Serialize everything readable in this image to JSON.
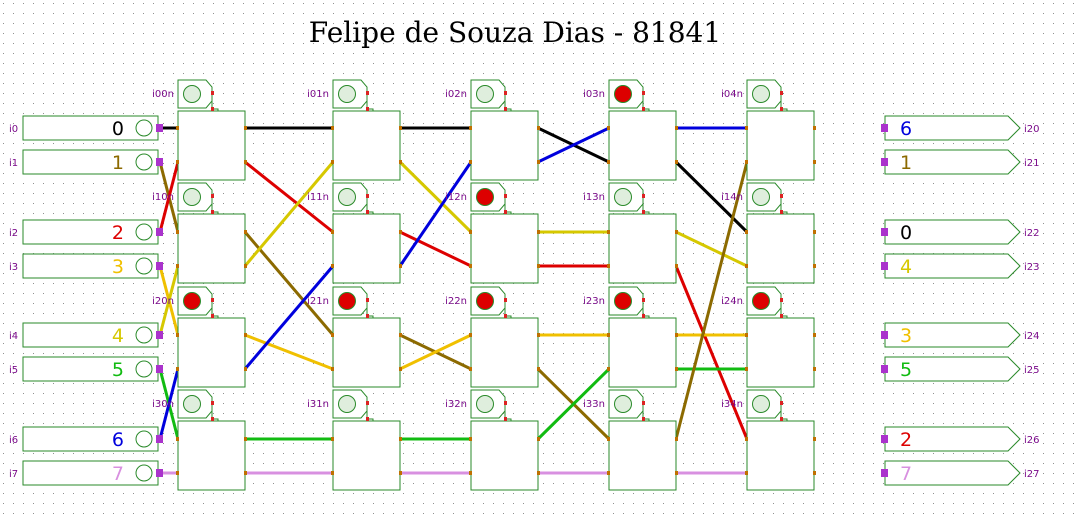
{
  "title": "Felipe de Souza Dias - 81841",
  "colors": {
    "0": "#000000",
    "1": "#8c6a00",
    "2": "#dd0000",
    "3": "#f0c000",
    "4": "#d6c800",
    "5": "#11bb11",
    "6": "#0000dd",
    "7": "#d890e0"
  },
  "inputs": [
    {
      "label": "i0",
      "value": "0",
      "color": "#000000"
    },
    {
      "label": "i1",
      "value": "1",
      "color": "#8c6a00"
    },
    {
      "label": "i2",
      "value": "2",
      "color": "#dd0000"
    },
    {
      "label": "i3",
      "value": "3",
      "color": "#f0c000"
    },
    {
      "label": "i4",
      "value": "4",
      "color": "#d6c800"
    },
    {
      "label": "i5",
      "value": "5",
      "color": "#11bb11"
    },
    {
      "label": "i6",
      "value": "6",
      "color": "#0000dd"
    },
    {
      "label": "i7",
      "value": "7",
      "color": "#d890e0"
    }
  ],
  "outputs": [
    {
      "label": "i20",
      "value": "6",
      "color": "#0000dd"
    },
    {
      "label": "i21",
      "value": "1",
      "color": "#8c6a00"
    },
    {
      "label": "i22",
      "value": "0",
      "color": "#000000"
    },
    {
      "label": "i23",
      "value": "4",
      "color": "#d6c800"
    },
    {
      "label": "i24",
      "value": "3",
      "color": "#f0c000"
    },
    {
      "label": "i25",
      "value": "5",
      "color": "#11bb11"
    },
    {
      "label": "i26",
      "value": "2",
      "color": "#dd0000"
    },
    {
      "label": "i27",
      "value": "7",
      "color": "#d890e0"
    }
  ],
  "switches": [
    {
      "label": "i00n",
      "on": false
    },
    {
      "label": "i01n",
      "on": false
    },
    {
      "label": "i02n",
      "on": false
    },
    {
      "label": "i03n",
      "on": true
    },
    {
      "label": "i04n",
      "on": false
    },
    {
      "label": "i10n",
      "on": false
    },
    {
      "label": "i11n",
      "on": false
    },
    {
      "label": "i12n",
      "on": true
    },
    {
      "label": "i13n",
      "on": false
    },
    {
      "label": "i14n",
      "on": false
    },
    {
      "label": "i20n",
      "on": true
    },
    {
      "label": "i21n",
      "on": true
    },
    {
      "label": "i22n",
      "on": true
    },
    {
      "label": "i23n",
      "on": true
    },
    {
      "label": "i24n",
      "on": true
    },
    {
      "label": "i30n",
      "on": false
    },
    {
      "label": "i31n",
      "on": false
    },
    {
      "label": "i32n",
      "on": false
    },
    {
      "label": "i33n",
      "on": false
    },
    {
      "label": "i34n",
      "on": false
    }
  ],
  "stages": [
    [
      "0",
      "1",
      "2",
      "3",
      "4",
      "5",
      "6",
      "7"
    ],
    [
      "0",
      "2",
      "1",
      "4",
      "3",
      "6",
      "5",
      "7"
    ],
    [
      "0",
      "4",
      "2",
      "6",
      "1",
      "3",
      "5",
      "7"
    ],
    [
      "0",
      "6",
      "4",
      "2",
      "3",
      "1",
      "5",
      "7"
    ],
    [
      "6",
      "0",
      "4",
      "2",
      "3",
      "5",
      "1",
      "7"
    ],
    [
      "6",
      "1",
      "0",
      "4",
      "3",
      "5",
      "2",
      "7"
    ]
  ]
}
